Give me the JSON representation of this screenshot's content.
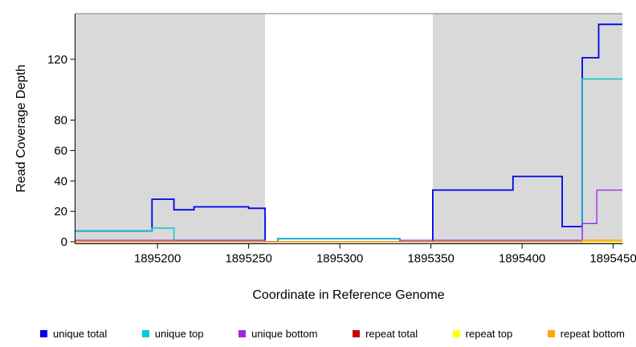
{
  "chart_data": {
    "type": "line",
    "step": true,
    "title": "",
    "xlabel": "Coordinate in Reference Genome",
    "ylabel": "Read Coverage Depth",
    "xlim": [
      1895155,
      1895455
    ],
    "ylim": [
      0,
      150
    ],
    "x_ticks": [
      1895200,
      1895250,
      1895300,
      1895350,
      1895400,
      1895450
    ],
    "y_ticks": [
      0,
      20,
      40,
      60,
      80,
      120
    ],
    "grid": false,
    "legend_position": "bottom",
    "shading_color": "#d9d9d9",
    "shaded_regions": [
      {
        "x0": 1895155,
        "x1": 1895259
      },
      {
        "x0": 1895351,
        "x1": 1895455
      }
    ],
    "series": [
      {
        "name": "unique total",
        "color": "#0000EE",
        "lw": 1.8,
        "points": [
          [
            1895155,
            7
          ],
          [
            1895197,
            7
          ],
          [
            1895197,
            28
          ],
          [
            1895209,
            28
          ],
          [
            1895209,
            21
          ],
          [
            1895220,
            21
          ],
          [
            1895220,
            23
          ],
          [
            1895250,
            23
          ],
          [
            1895250,
            22
          ],
          [
            1895259,
            22
          ],
          [
            1895259,
            0
          ],
          [
            1895266,
            0
          ],
          [
            1895266,
            2
          ],
          [
            1895333,
            2
          ],
          [
            1895333,
            0
          ],
          [
            1895351,
            0
          ],
          [
            1895351,
            34
          ],
          [
            1895395,
            34
          ],
          [
            1895395,
            43
          ],
          [
            1895422,
            43
          ],
          [
            1895422,
            10
          ],
          [
            1895433,
            10
          ],
          [
            1895433,
            121
          ],
          [
            1895442,
            121
          ],
          [
            1895442,
            143
          ],
          [
            1895455,
            143
          ]
        ]
      },
      {
        "name": "unique top",
        "color": "#00CDCD",
        "lw": 1.5,
        "points": [
          [
            1895155,
            7
          ],
          [
            1895197,
            7
          ],
          [
            1895197,
            9
          ],
          [
            1895209,
            9
          ],
          [
            1895209,
            1
          ],
          [
            1895259,
            1
          ],
          [
            1895259,
            0
          ],
          [
            1895266,
            0
          ],
          [
            1895266,
            2
          ],
          [
            1895333,
            2
          ],
          [
            1895333,
            0
          ],
          [
            1895433,
            0
          ],
          [
            1895433,
            107
          ],
          [
            1895455,
            107
          ]
        ]
      },
      {
        "name": "unique bottom",
        "color": "#A020F0",
        "lw": 1.3,
        "points": [
          [
            1895155,
            1
          ],
          [
            1895259,
            1
          ],
          [
            1895259,
            0
          ],
          [
            1895333,
            0
          ],
          [
            1895333,
            1
          ],
          [
            1895433,
            1
          ],
          [
            1895433,
            12
          ],
          [
            1895441,
            12
          ],
          [
            1895441,
            34
          ],
          [
            1895455,
            34
          ]
        ]
      },
      {
        "name": "repeat total",
        "color": "#CD0000",
        "lw": 1.3,
        "points": [
          [
            1895155,
            0
          ],
          [
            1895455,
            0
          ]
        ]
      },
      {
        "name": "repeat top",
        "color": "#FFFF00",
        "lw": 1.2,
        "points": [
          [
            1895155,
            0
          ],
          [
            1895455,
            0
          ]
        ]
      },
      {
        "name": "repeat bottom",
        "color": "#FFA500",
        "lw": 1.5,
        "points": [
          [
            1895155,
            0
          ],
          [
            1895433,
            0
          ],
          [
            1895433,
            1
          ],
          [
            1895455,
            1
          ]
        ]
      }
    ]
  }
}
